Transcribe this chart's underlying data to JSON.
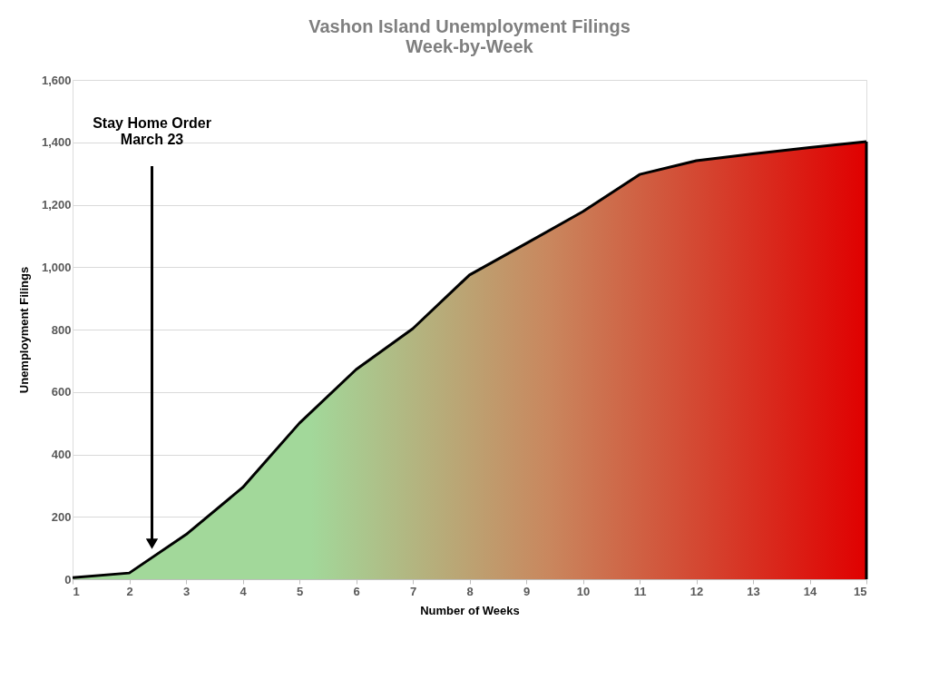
{
  "chart_data": {
    "type": "area",
    "title": [
      "Vashon Island Unemployment Filings",
      "Week-by-Week"
    ],
    "xlabel": "Number of Weeks",
    "ylabel": "Unemployment Filings",
    "x": [
      1,
      2,
      3,
      4,
      5,
      6,
      7,
      8,
      9,
      10,
      11,
      12,
      13,
      14,
      15
    ],
    "series": [
      {
        "color": "#000000",
        "values": [
          5,
          20,
          143,
          294,
          500,
          672,
          803,
          975,
          1076,
          1178,
          1297,
          1341,
          1363,
          1383,
          1402
        ]
      }
    ],
    "xlim": [
      1,
      15
    ],
    "xticks": [
      1,
      2,
      3,
      4,
      5,
      6,
      7,
      8,
      9,
      10,
      11,
      12,
      13,
      14,
      15
    ],
    "ylim": [
      0,
      1600
    ],
    "yticks": [
      {
        "value": 0,
        "label": "0"
      },
      {
        "value": 200,
        "label": "200"
      },
      {
        "value": 400,
        "label": "400"
      },
      {
        "value": 600,
        "label": "600"
      },
      {
        "value": 800,
        "label": "800"
      },
      {
        "value": 1000,
        "label": "1,000"
      },
      {
        "value": 1200,
        "label": "1,200"
      },
      {
        "value": 1400,
        "label": "1,400"
      },
      {
        "value": 1600,
        "label": "1,600"
      }
    ],
    "grid": "y",
    "annotations": [
      "Stay Home Order\nMarch 23"
    ]
  }
}
